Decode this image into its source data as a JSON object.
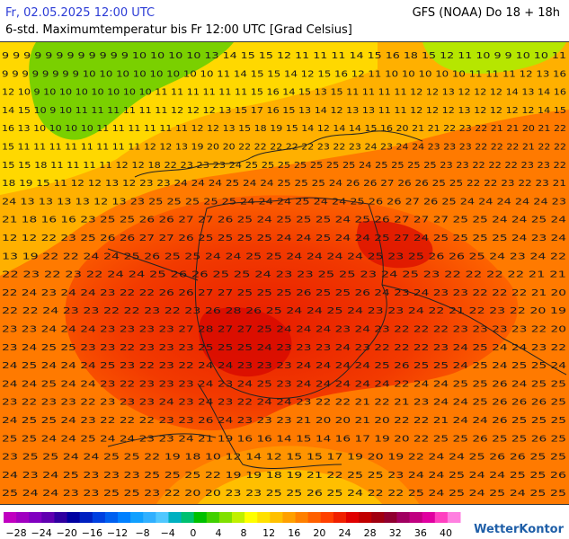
{
  "header": {
    "date": "Fr, 02.05.2025 12:00 UTC",
    "model": "GFS (NOAA) Do 18 + 18h",
    "subtitle": "6-std. Maximumtemperatur bis Fr 12:00 UTC [Grad Celsius]"
  },
  "legend": {
    "labels": [
      "−28",
      "−24",
      "−20",
      "−16",
      "−12",
      "−8",
      "−4",
      "0",
      "4",
      "8",
      "12",
      "16",
      "20",
      "24",
      "28",
      "32",
      "36",
      "40"
    ],
    "colors": [
      "#c000c0",
      "#a000c0",
      "#8000c0",
      "#6000b0",
      "#3000a0",
      "#0000a0",
      "#0020c0",
      "#0040e0",
      "#0060f0",
      "#0080ff",
      "#10a0ff",
      "#30b0ff",
      "#50c8ff",
      "#00b0c0",
      "#00c070",
      "#00c000",
      "#40d000",
      "#80e000",
      "#c0f000",
      "#ffff00",
      "#ffe000",
      "#ffc000",
      "#ffa000",
      "#ff8000",
      "#ff6000",
      "#ff4000",
      "#f02000",
      "#e00000",
      "#c00000",
      "#a00010",
      "#900030",
      "#a00060",
      "#c00080",
      "#e000a0",
      "#ff40c0",
      "#ff80e0"
    ]
  },
  "brand": "WetterKontor",
  "map": {
    "rows": [
      "9 9 9 9 9 9 9 9 9 9 9 9 10 10 10 10 13 14 15 15 12 11 11 11 14 15 16 18 15 12 11 10 9 9 10 10 11",
      "9 9 9 9 9 9 9 9 10 10 10 10 10 10 10 10 11 14 15 15 14 12 15 16 12 11 10 10 10 10 10 11 11 11 12 13 16",
      "12 10 9 10 10 10 10 10 10 10 11 11 11 11 11 11 15 16 14 15 13 15 11 11 11 11 12 12 13 12 12 12 14 13 14 16",
      "14 15 10 9 10 11 11 11 11 11 11 12 12 12 13 15 17 16 15 13 14 12 13 13 11 11 12 12 12 13 12 12 12 12 14 15",
      "16 13 10 10 10 10 11 11 11 11 11 11 12 12 13 15 18 19 15 14 12 14 14 15 16 20 21 21 22 23 22 21 21 20 21 22",
      "15 11 11 11 11 11 11 11 11 12 12 13 19 20 20 22 22 22 22 22 23 22 23 24 23 24 24 23 23 23 22 22 22 21 22 22",
      "15 15 18 11 11 11 11 12 12 18 22 23 23 23 24 25 25 25 25 25 25 25 24 25 25 25 25 23 23 22 22 22 23 23 22",
      "18 19 15 11 12 12 13 12 23 23 24 24 24 25 24 24 25 25 25 24 26 26 27 26 26 25 25 22 22 23 22 23 21",
      "24 13 13 13 13 12 13 23 25 25 25 25 25 24 24 24 25 24 24 25 26 26 27 26 25 24 24 24 24 24 23",
      "21 18 16 16 23 25 25 26 26 27 27 26 25 24 25 25 25 24 25 26 27 27 27 25 25 24 24 25 24",
      "12 12 22 23 25 26 26 27 27 26 25 25 25 25 24 24 25 24 24 25 27 24 25 25 25 25 24 23 24",
      "13 19 22 22 24 24 25 26 25 25 24 24 25 25 24 24 24 24 25 23 25 26 26 25 24 23 24 22",
      "22 23 22 23 22 24 24 25 26 26 25 25 24 23 23 25 25 23 24 25 23 22 22 22 22 21 21",
      "22 24 23 24 24 23 22 22 26 26 27 27 25 25 25 26 25 25 26 24 23 24 23 23 22 22 22 21 20",
      "22 22 24 23 23 22 22 23 22 23 26 28 26 25 24 24 25 24 23 23 24 22 21 22 23 22 20 19",
      "23 23 24 24 24 23 23 23 23 27 28 27 27 25 24 24 24 23 24 23 22 22 22 23 23 23 23 22 20",
      "23 24 25 25 23 23 22 23 23 23 25 25 25 24 23 23 23 24 23 22 22 22 23 24 25 24 24 23 22",
      "24 25 24 24 24 25 23 22 23 22 24 24 23 23 23 24 24 24 24 25 26 25 25 24 25 24 25 25 24",
      "24 24 25 24 24 23 22 23 23 23 24 23 24 25 23 24 24 24 24 24 22 24 24 25 25 26 24 25 25",
      "23 22 23 23 22 23 23 23 24 23 24 23 22 24 24 23 22 22 21 22 21 23 24 24 25 26 26 26 25",
      "24 25 25 24 23 22 22 22 23 23 26 24 23 23 23 21 20 20 21 20 22 22 21 24 24 26 25 25 25",
      "25 25 24 24 25 24 24 23 23 24 21 19 16 16 14 15 14 16 17 19 20 22 25 25 26 25 25 26 25",
      "23 25 25 24 24 25 25 22 19 18 10 12 14 12 15 15 17 19 20 19 22 24 24 25 26 26 25 25",
      "24 23 24 25 23 23 23 25 25 25 22 19 19 18 19 21 22 25 25 23 24 24 25 24 24 25 25 26",
      "25 24 24 23 23 25 25 23 22 20 20 23 23 25 25 26 25 24 22 22 25 24 25 24 25 24 25 25"
    ]
  }
}
